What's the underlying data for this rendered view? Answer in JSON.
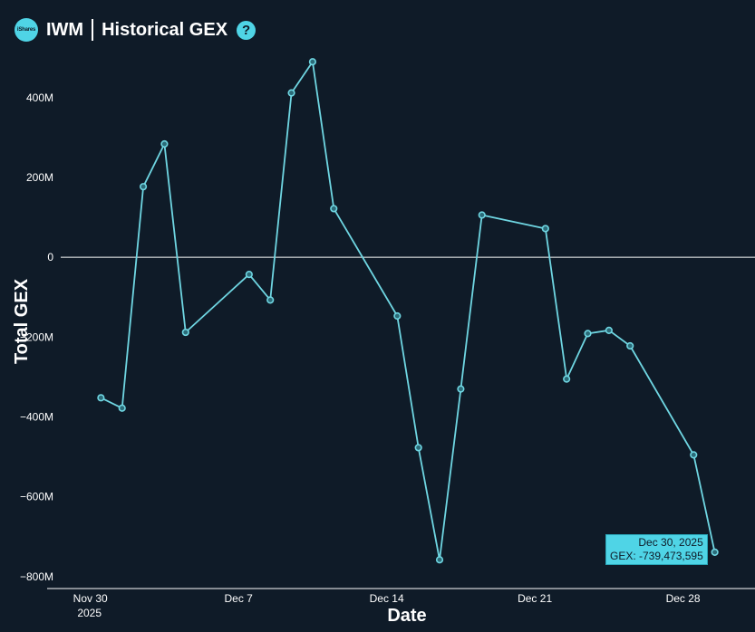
{
  "header": {
    "logo_text": "iShares",
    "ticker": "IWM",
    "title": "Historical GEX",
    "help_glyph": "?"
  },
  "colors": {
    "background": "#0f1b28",
    "line": "#6fd6e2",
    "accent": "#4fd4e6",
    "text": "#ffffff"
  },
  "chart_data": {
    "type": "line",
    "xlabel": "Date",
    "ylabel": "Total GEX",
    "ylim": [
      -830,
      520
    ],
    "y_ticks": [
      {
        "value": 400,
        "label": "400M"
      },
      {
        "value": 200,
        "label": "200M"
      },
      {
        "value": 0,
        "label": "0"
      },
      {
        "value": -200,
        "label": "−200M"
      },
      {
        "value": -400,
        "label": "−400M"
      },
      {
        "value": -600,
        "label": "−600M"
      },
      {
        "value": -800,
        "label": "−800M"
      }
    ],
    "x_ticks": [
      {
        "day": 0,
        "label": "Nov 30",
        "sublabel": "2025"
      },
      {
        "day": 7,
        "label": "Dec 7",
        "sublabel": ""
      },
      {
        "day": 14,
        "label": "Dec 14",
        "sublabel": ""
      },
      {
        "day": 21,
        "label": "Dec 21",
        "sublabel": ""
      },
      {
        "day": 28,
        "label": "Dec 28",
        "sublabel": ""
      }
    ],
    "xlim_days": [
      -1.4,
      31.4
    ],
    "series": [
      {
        "points": [
          {
            "day": 0.5,
            "value": -352
          },
          {
            "day": 1.5,
            "value": -378
          },
          {
            "day": 2.5,
            "value": 177
          },
          {
            "day": 3.5,
            "value": 284
          },
          {
            "day": 4.5,
            "value": -188
          },
          {
            "day": 7.5,
            "value": -43
          },
          {
            "day": 8.5,
            "value": -107
          },
          {
            "day": 9.5,
            "value": 412
          },
          {
            "day": 10.5,
            "value": 490
          },
          {
            "day": 11.5,
            "value": 122
          },
          {
            "day": 14.5,
            "value": -147
          },
          {
            "day": 15.5,
            "value": -477
          },
          {
            "day": 16.5,
            "value": -758
          },
          {
            "day": 17.5,
            "value": -330
          },
          {
            "day": 18.5,
            "value": 106
          },
          {
            "day": 21.5,
            "value": 72
          },
          {
            "day": 22.5,
            "value": -305
          },
          {
            "day": 23.5,
            "value": -191
          },
          {
            "day": 24.5,
            "value": -183
          },
          {
            "day": 25.5,
            "value": -222
          },
          {
            "day": 28.5,
            "value": -495
          },
          {
            "day": 29.5,
            "value": -739
          }
        ]
      }
    ],
    "tooltip": {
      "date": "Dec 30, 2025",
      "text": "GEX: -739,473,595"
    }
  }
}
